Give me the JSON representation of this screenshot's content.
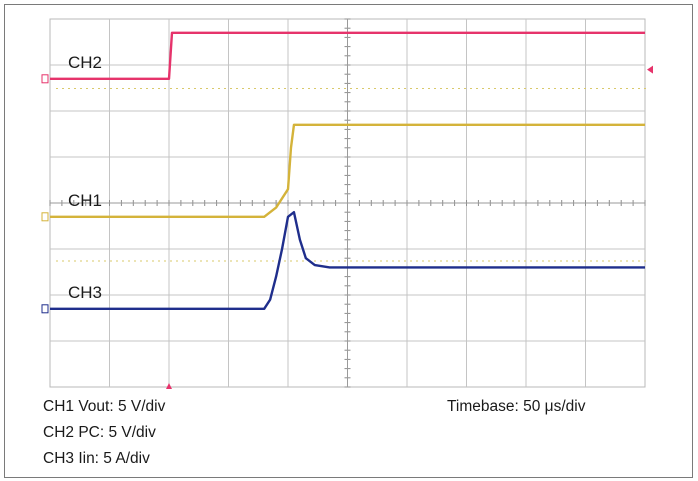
{
  "chart_data": {
    "type": "line",
    "title": "",
    "x_unit": "div",
    "y_unit": "div",
    "xlim": [
      0,
      10
    ],
    "ylim": [
      0,
      8
    ],
    "grid": true,
    "grid_divisions": {
      "x": 10,
      "y": 8
    },
    "trigger_marker_x": 2,
    "series": [
      {
        "name": "CH2",
        "color": "#e6336b",
        "ground_level": 2.7,
        "x": [
          0,
          2.0,
          2.05,
          2.1,
          10
        ],
        "y": [
          2.7,
          2.7,
          3.7,
          3.7,
          3.7
        ]
      },
      {
        "name": "CH1",
        "color": "#d4b33a",
        "ground_level": -0.3,
        "x": [
          0,
          3.6,
          3.8,
          4.0,
          4.05,
          4.1,
          4.3,
          10
        ],
        "y": [
          -0.3,
          -0.3,
          -0.1,
          0.3,
          1.2,
          1.7,
          1.7,
          1.7
        ]
      },
      {
        "name": "CH3",
        "color": "#1f2e8c",
        "ground_level": -2.3,
        "x": [
          0,
          3.6,
          3.7,
          3.8,
          3.9,
          4.0,
          4.1,
          4.2,
          4.3,
          4.45,
          4.7,
          5.0,
          10
        ],
        "y": [
          -2.3,
          -2.3,
          -2.1,
          -1.6,
          -1.0,
          -0.3,
          -0.2,
          -0.8,
          -1.2,
          -1.35,
          -1.4,
          -1.4,
          -1.4
        ]
      }
    ],
    "footer": {
      "ch1": "CH1 Vout: 5 V/div",
      "ch2": "CH2 PC: 5 V/div",
      "ch3": "CH3 Iin: 5 A/div",
      "timebase": "Timebase: 50  μs/div"
    },
    "colors": {
      "grid": "#c4c4c4",
      "frame": "#b8b8b8",
      "background": "#ffffff",
      "reference_dots": "#d9c96a"
    }
  }
}
